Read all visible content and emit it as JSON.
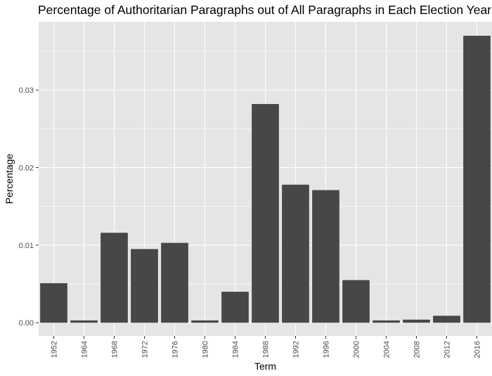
{
  "chart_data": {
    "type": "bar",
    "title": "Percentage of Authoritarian Paragraphs out of All Paragraphs in Each Election Year",
    "xlabel": "Term",
    "ylabel": "Percentage",
    "categories": [
      "1952",
      "1964",
      "1968",
      "1972",
      "1976",
      "1980",
      "1984",
      "1988",
      "1992",
      "1996",
      "2000",
      "2004",
      "2008",
      "2012",
      "2016"
    ],
    "values": [
      0.0051,
      0.0003,
      0.0116,
      0.0095,
      0.0103,
      0.0003,
      0.004,
      0.0282,
      0.0178,
      0.0171,
      0.0055,
      0.0003,
      0.0004,
      0.0009,
      0.037
    ],
    "ylim": [
      -0.0017,
      0.0388
    ],
    "yticks": [
      0.0,
      0.01,
      0.02,
      0.03
    ],
    "ytick_labels": [
      "0.00",
      "0.01",
      "0.02",
      "0.03"
    ],
    "grid": true,
    "legend": "none",
    "colors": {
      "bar": "#474747",
      "panel": "#e5e5e5",
      "grid": "#ffffff"
    }
  }
}
